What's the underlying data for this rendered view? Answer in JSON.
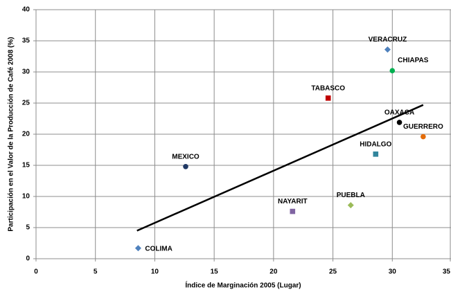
{
  "chart_data": {
    "type": "scatter",
    "xlabel": "Índice de Marginación 2005 (Lugar)",
    "ylabel": "Participación en el Valor de la Producción de Café 2008 (%)",
    "xlim": [
      0,
      35
    ],
    "xticks": [
      0,
      5,
      10,
      15,
      20,
      25,
      30,
      35
    ],
    "ylim": [
      0,
      40
    ],
    "yticks": [
      0,
      5,
      10,
      15,
      20,
      25,
      30,
      35,
      40
    ],
    "grid": true,
    "points": [
      {
        "label": "COLIMA",
        "x": 8.6,
        "y": 1.7,
        "color": "#4f81bd",
        "marker": "diamond"
      },
      {
        "label": "MEXICO",
        "x": 12.6,
        "y": 14.8,
        "color": "#1f3864",
        "marker": "circle"
      },
      {
        "label": "NAYARIT",
        "x": 21.6,
        "y": 7.6,
        "color": "#8064a2",
        "marker": "square"
      },
      {
        "label": "TABASCO",
        "x": 24.6,
        "y": 25.8,
        "color": "#c00000",
        "marker": "square"
      },
      {
        "label": "PUEBLA",
        "x": 26.5,
        "y": 8.6,
        "color": "#9bbb59",
        "marker": "diamond"
      },
      {
        "label": "HIDALGO",
        "x": 28.6,
        "y": 16.8,
        "color": "#31859c",
        "marker": "square"
      },
      {
        "label": "VERACRUZ",
        "x": 29.6,
        "y": 33.6,
        "color": "#4f81bd",
        "marker": "diamond"
      },
      {
        "label": "OAXACA",
        "x": 30.6,
        "y": 21.9,
        "color": "#000000",
        "marker": "circle"
      },
      {
        "label": "CHIAPAS",
        "x": 30.0,
        "y": 30.2,
        "color": "#00b050",
        "marker": "circle"
      },
      {
        "label": "GUERRERO",
        "x": 32.6,
        "y": 19.6,
        "color": "#e46c0a",
        "marker": "circle"
      }
    ],
    "trendline": {
      "x": [
        8.5,
        32.6
      ],
      "values": [
        4.5,
        24.7
      ],
      "color": "#000000"
    }
  }
}
